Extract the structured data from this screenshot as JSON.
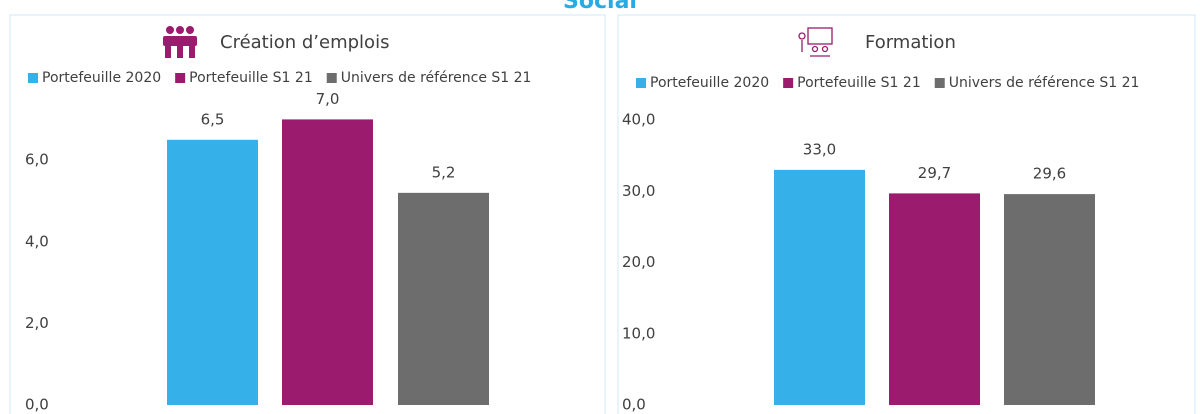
{
  "header": {
    "title": "Social"
  },
  "chart_data": [
    {
      "type": "bar",
      "title": "Création d’emplois",
      "series": [
        {
          "name": "Portefeuille 2020",
          "color": "#35b0e8",
          "values": [
            6.5
          ],
          "value_labels": [
            "6,5"
          ]
        },
        {
          "name": "Portefeuille S1 21",
          "color": "#9b1b6e",
          "values": [
            7.0
          ],
          "value_labels": [
            "7,0"
          ]
        },
        {
          "name": "Univers de référence S1 21",
          "color": "#6d6d6d",
          "values": [
            5.2
          ],
          "value_labels": [
            "5,2"
          ]
        }
      ],
      "ylim": [
        0,
        7.5
      ],
      "yticks": [
        {
          "value": 0,
          "label": "0,0"
        },
        {
          "value": 2,
          "label": "2,0"
        },
        {
          "value": 4,
          "label": "4,0"
        },
        {
          "value": 6,
          "label": "6,0"
        }
      ],
      "legend": "top"
    },
    {
      "type": "bar",
      "title": "Formation",
      "series": [
        {
          "name": "Portefeuille 2020",
          "color": "#35b0e8",
          "values": [
            33.0
          ],
          "value_labels": [
            "33,0"
          ]
        },
        {
          "name": "Portefeuille S1 21",
          "color": "#9b1b6e",
          "values": [
            29.7
          ],
          "value_labels": [
            "29,7"
          ]
        },
        {
          "name": "Univers de référence S1 21",
          "color": "#6d6d6d",
          "values": [
            29.6
          ],
          "value_labels": [
            "29,6"
          ]
        }
      ],
      "ylim": [
        0,
        40
      ],
      "yticks": [
        {
          "value": 0,
          "label": "0,0"
        },
        {
          "value": 10,
          "label": "10,0"
        },
        {
          "value": 20,
          "label": "20,0"
        },
        {
          "value": 30,
          "label": "30,0"
        },
        {
          "value": 40,
          "label": "40,0"
        }
      ],
      "legend": "top"
    }
  ]
}
